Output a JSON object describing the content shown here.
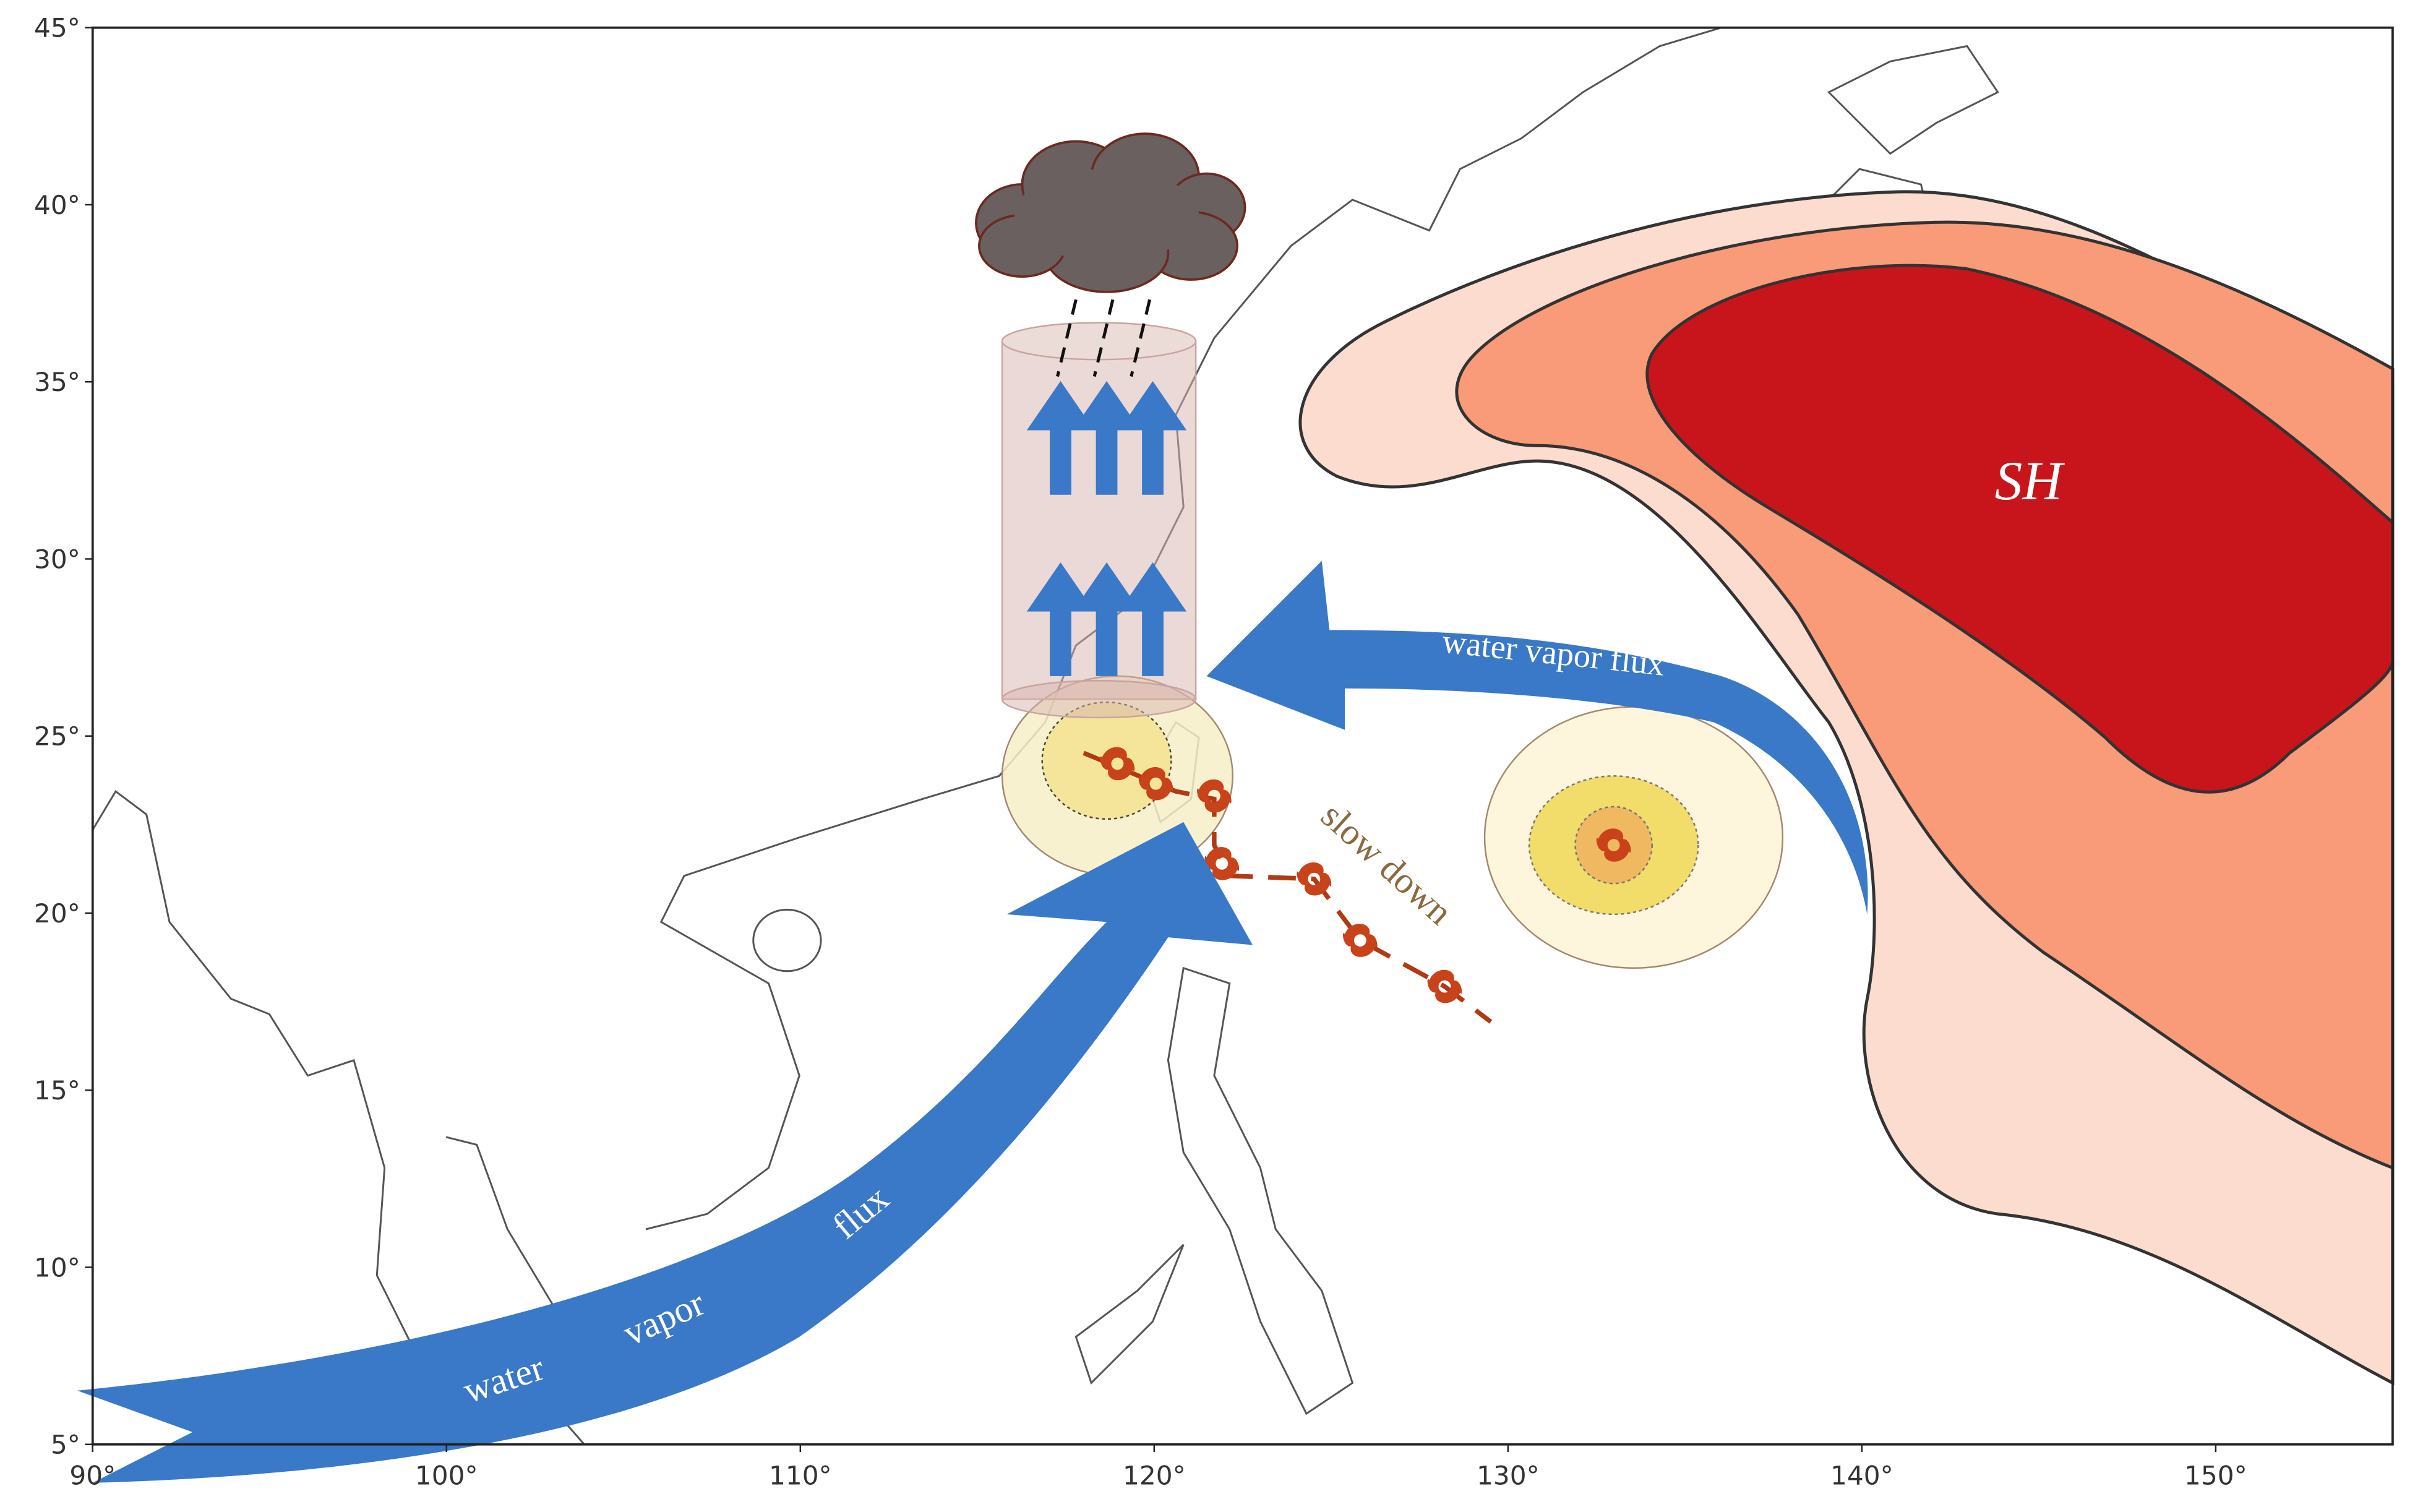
{
  "map": {
    "xlim": [
      90,
      155
    ],
    "ylim": [
      5,
      45
    ],
    "xticks": [
      {
        "value": 90,
        "label": "90°"
      },
      {
        "value": 100,
        "label": "100°"
      },
      {
        "value": 110,
        "label": "110°"
      },
      {
        "value": 120,
        "label": "120°"
      },
      {
        "value": 130,
        "label": "130°"
      },
      {
        "value": 140,
        "label": "140°"
      },
      {
        "value": 150,
        "label": "150°"
      }
    ],
    "yticks": [
      {
        "value": 5,
        "label": "5°"
      },
      {
        "value": 10,
        "label": "10°"
      },
      {
        "value": 15,
        "label": "15°"
      },
      {
        "value": 20,
        "label": "20°"
      },
      {
        "value": 25,
        "label": "25°"
      },
      {
        "value": 30,
        "label": "30°"
      },
      {
        "value": 35,
        "label": "35°"
      },
      {
        "value": 40,
        "label": "40°"
      },
      {
        "value": 45,
        "label": "45°"
      }
    ],
    "labels": {
      "high": "SH",
      "upper_flux": "water vapor flux",
      "lower_flux_1": "water",
      "lower_flux_2": "vapor",
      "lower_flux_3": "flux",
      "track": "slow down"
    }
  }
}
